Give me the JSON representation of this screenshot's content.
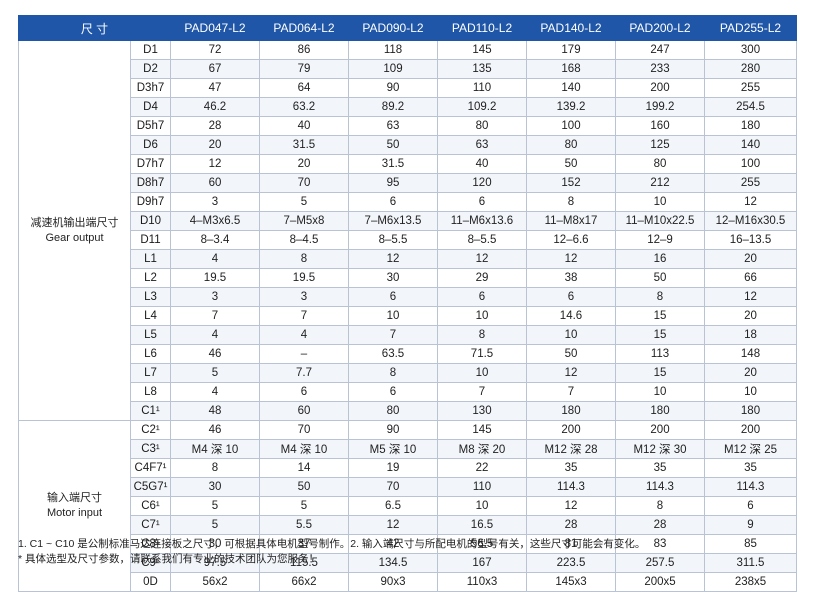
{
  "table": {
    "header_label": "尺 寸",
    "models": [
      "PAD047-L2",
      "PAD064-L2",
      "PAD090-L2",
      "PAD110-L2",
      "PAD140-L2",
      "PAD200-L2",
      "PAD255-L2"
    ],
    "groups": [
      {
        "name_cn": "减速机输出端尺寸",
        "name_en": "Gear output",
        "rows": [
          {
            "code": "D1",
            "values": [
              "72",
              "86",
              "118",
              "145",
              "179",
              "247",
              "300"
            ]
          },
          {
            "code": "D2",
            "values": [
              "67",
              "79",
              "109",
              "135",
              "168",
              "233",
              "280"
            ]
          },
          {
            "code": "D3h7",
            "values": [
              "47",
              "64",
              "90",
              "110",
              "140",
              "200",
              "255"
            ]
          },
          {
            "code": "D4",
            "values": [
              "46.2",
              "63.2",
              "89.2",
              "109.2",
              "139.2",
              "199.2",
              "254.5"
            ]
          },
          {
            "code": "D5h7",
            "values": [
              "28",
              "40",
              "63",
              "80",
              "100",
              "160",
              "180"
            ]
          },
          {
            "code": "D6",
            "values": [
              "20",
              "31.5",
              "50",
              "63",
              "80",
              "125",
              "140"
            ]
          },
          {
            "code": "D7h7",
            "values": [
              "12",
              "20",
              "31.5",
              "40",
              "50",
              "80",
              "100"
            ]
          },
          {
            "code": "D8h7",
            "values": [
              "60",
              "70",
              "95",
              "120",
              "152",
              "212",
              "255"
            ]
          },
          {
            "code": "D9h7",
            "values": [
              "3",
              "5",
              "6",
              "6",
              "8",
              "10",
              "12"
            ]
          },
          {
            "code": "D10",
            "values": [
              "4–M3x6.5",
              "7–M5x8",
              "7–M6x13.5",
              "11–M6x13.6",
              "11–M8x17",
              "11–M10x22.5",
              "12–M16x30.5"
            ]
          },
          {
            "code": "D11",
            "values": [
              "8–3.4",
              "8–4.5",
              "8–5.5",
              "8–5.5",
              "12–6.6",
              "12–9",
              "16–13.5"
            ]
          },
          {
            "code": "L1",
            "values": [
              "4",
              "8",
              "12",
              "12",
              "12",
              "16",
              "20"
            ]
          },
          {
            "code": "L2",
            "values": [
              "19.5",
              "19.5",
              "30",
              "29",
              "38",
              "50",
              "66"
            ]
          },
          {
            "code": "L3",
            "values": [
              "3",
              "3",
              "6",
              "6",
              "6",
              "8",
              "12"
            ]
          },
          {
            "code": "L4",
            "values": [
              "7",
              "7",
              "10",
              "10",
              "14.6",
              "15",
              "20"
            ]
          },
          {
            "code": "L5",
            "values": [
              "4",
              "4",
              "7",
              "8",
              "10",
              "15",
              "18"
            ]
          },
          {
            "code": "L6",
            "values": [
              "46",
              "–",
              "63.5",
              "71.5",
              "50",
              "113",
              "148"
            ]
          },
          {
            "code": "L7",
            "values": [
              "5",
              "7.7",
              "8",
              "10",
              "12",
              "15",
              "20"
            ]
          },
          {
            "code": "L8",
            "values": [
              "4",
              "6",
              "6",
              "7",
              "7",
              "10",
              "10"
            ]
          },
          {
            "code": "C1¹",
            "values": [
              "48",
              "60",
              "80",
              "130",
              "180",
              "180",
              "180"
            ]
          }
        ]
      },
      {
        "name_cn": "输入端尺寸",
        "name_en": "Motor input",
        "rows": [
          {
            "code": "C2¹",
            "values": [
              "46",
              "70",
              "90",
              "145",
              "200",
              "200",
              "200"
            ]
          },
          {
            "code": "C3¹",
            "values": [
              "M4 深 10",
              "M4 深 10",
              "M5 深 10",
              "M8 深 20",
              "M12 深 28",
              "M12 深 30",
              "M12 深 25"
            ]
          },
          {
            "code": "C4F7¹",
            "values": [
              "8",
              "14",
              "19",
              "22",
              "35",
              "35",
              "35"
            ]
          },
          {
            "code": "C5G7¹",
            "values": [
              "30",
              "50",
              "70",
              "110",
              "114.3",
              "114.3",
              "114.3"
            ]
          },
          {
            "code": "C6¹",
            "values": [
              "5",
              "5",
              "6.5",
              "10",
              "12",
              "8",
              "6"
            ]
          },
          {
            "code": "C7¹",
            "values": [
              "5",
              "5.5",
              "12",
              "16.5",
              "28",
              "28",
              "9"
            ]
          },
          {
            "code": "C8¹",
            "values": [
              "30",
              "37",
              "42",
              "56.5",
              "81",
              "83",
              "85"
            ]
          },
          {
            "code": "C9¹",
            "values": [
              "97.5",
              "115.5",
              "134.5",
              "167",
              "223.5",
              "257.5",
              "311.5"
            ]
          },
          {
            "code": "0D",
            "values": [
              "56x2",
              "66x2",
              "90x3",
              "110x3",
              "145x3",
              "200x5",
              "238x5"
            ]
          }
        ]
      }
    ]
  },
  "notes": {
    "line1": "1. C1 ~ C10 是公制标准马达连接板之尺寸，可根据具体电机型号制作。2. 输入端尺寸与所配电机的型号有关，这些尺寸可能会有变化。",
    "line2": "* 具体选型及尺寸参数，请联系我们有专业的技术团队为您服务！"
  },
  "colors": {
    "header_bg": "#1f56a8",
    "header_text": "#ffffff",
    "border": "#b9c3d3",
    "stripe": "#f2f5fa"
  }
}
